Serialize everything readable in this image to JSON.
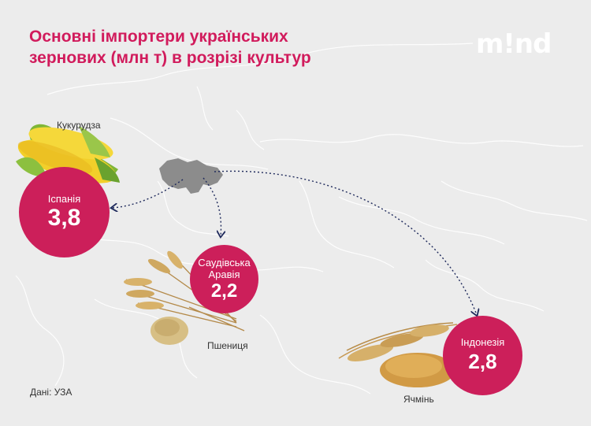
{
  "header": {
    "title_line1": "Основні імпортери українських",
    "title_line2": "зернових (млн т) в розрізі культур",
    "logo": "m!nd"
  },
  "importers": [
    {
      "country": "Іспанія",
      "value": "3,8",
      "crop": "Кукурудза"
    },
    {
      "country_line1": "Саудівська",
      "country_line2": "Аравія",
      "value": "2,2",
      "crop": "Пшениця"
    },
    {
      "country": "Індонезія",
      "value": "2,8",
      "crop": "Ячмінь"
    }
  ],
  "source": "Дані: УЗА",
  "colors": {
    "accent": "#cc1f5a",
    "title": "#d11b5c",
    "map_land": "#e6e6e6",
    "map_background": "#ececec",
    "ukraine": "#8c8c8c",
    "route": "#1f2a5c"
  },
  "icons": [
    "corn-image",
    "wheat-image",
    "barley-image"
  ]
}
